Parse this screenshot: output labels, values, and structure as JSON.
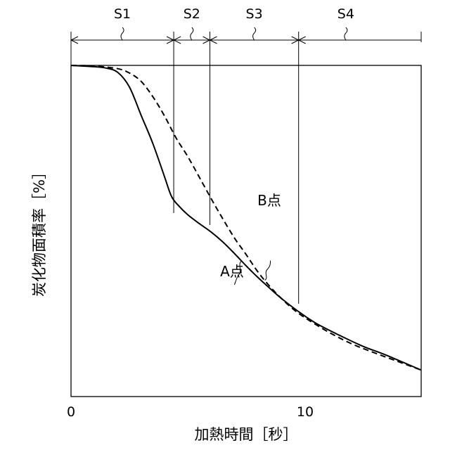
{
  "chart_data": {
    "type": "line",
    "title": "",
    "xlabel": "加熱時間［秒］",
    "ylabel": "炭化物面積率［%］",
    "xlim": [
      0,
      15
    ],
    "ylim": [
      0,
      100
    ],
    "x_ticks": [
      {
        "value": 0,
        "label": "0"
      },
      {
        "value": 10,
        "label": "10"
      }
    ],
    "grid": false,
    "series": [
      {
        "name": "A点",
        "style": "solid",
        "color": "#000000",
        "x": [
          0,
          1.0,
          1.5,
          2.0,
          2.5,
          3.0,
          3.5,
          4.0,
          4.3,
          4.6,
          5.0,
          5.5,
          6.0,
          6.5,
          7.0,
          7.5,
          8.0,
          8.5,
          9.0,
          9.7,
          10.5,
          11.5,
          12.5,
          13.5,
          15.0
        ],
        "y": [
          100,
          99.6,
          99.2,
          97.9,
          93.5,
          85.0,
          76.5,
          66.5,
          60.5,
          57.7,
          54.9,
          52.2,
          49.7,
          46.7,
          43.2,
          39.5,
          36.0,
          32.8,
          29.7,
          25.9,
          22.1,
          18.5,
          15.2,
          12.5,
          8.0
        ]
      },
      {
        "name": "B点",
        "style": "dashed",
        "color": "#000000",
        "x": [
          0,
          1.0,
          2.0,
          2.5,
          3.0,
          3.5,
          4.0,
          4.5,
          5.0,
          5.5,
          6.0,
          6.5,
          7.0,
          7.5,
          8.0,
          8.5,
          9.0,
          9.5,
          10.0,
          11.0,
          12.0,
          13.0,
          14.0,
          15.0
        ],
        "y": [
          100,
          99.8,
          99.0,
          97.7,
          95.2,
          90.6,
          84.8,
          78.1,
          72.5,
          66.2,
          59.8,
          53.7,
          47.9,
          42.9,
          37.7,
          33.4,
          29.7,
          26.5,
          23.9,
          19.6,
          16.0,
          13.2,
          10.6,
          8.0
        ]
      }
    ],
    "stages": [
      {
        "label": "S1",
        "from": 0,
        "to": 4.4
      },
      {
        "label": "S2",
        "from": 4.4,
        "to": 5.95
      },
      {
        "label": "S3",
        "from": 5.95,
        "to": 9.75
      },
      {
        "label": "S4",
        "from": 9.75,
        "to": 15.0
      }
    ],
    "annotations": [
      {
        "text": "A点",
        "series": "A点",
        "at_x": 7.3
      },
      {
        "text": "B点",
        "series": "B点",
        "at_x": 8.3
      }
    ]
  }
}
